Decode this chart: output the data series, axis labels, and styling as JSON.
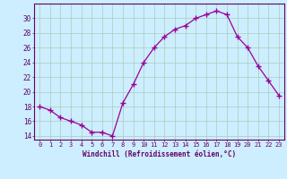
{
  "x": [
    0,
    1,
    2,
    3,
    4,
    5,
    6,
    7,
    8,
    9,
    10,
    11,
    12,
    13,
    14,
    15,
    16,
    17,
    18,
    19,
    20,
    21,
    22,
    23
  ],
  "y": [
    18.0,
    17.5,
    16.5,
    16.0,
    15.5,
    14.5,
    14.5,
    14.0,
    18.5,
    21.0,
    24.0,
    26.0,
    27.5,
    28.5,
    29.0,
    30.0,
    30.5,
    31.0,
    30.5,
    27.5,
    26.0,
    23.5,
    21.5,
    19.5
  ],
  "xlabel": "Windchill (Refroidissement éolien,°C)",
  "ylim": [
    13.5,
    32
  ],
  "yticks": [
    14,
    16,
    18,
    20,
    22,
    24,
    26,
    28,
    30
  ],
  "xticks": [
    0,
    1,
    2,
    3,
    4,
    5,
    6,
    7,
    8,
    9,
    10,
    11,
    12,
    13,
    14,
    15,
    16,
    17,
    18,
    19,
    20,
    21,
    22,
    23
  ],
  "line_color": "#990099",
  "marker": "+",
  "marker_size": 4,
  "bg_color": "#cceeff",
  "grid_color": "#aaccbb",
  "axis_color": "#660066",
  "tick_color": "#660066",
  "label_color": "#660066",
  "font_family": "monospace",
  "tick_fontsize": 5,
  "label_fontsize": 5.5
}
